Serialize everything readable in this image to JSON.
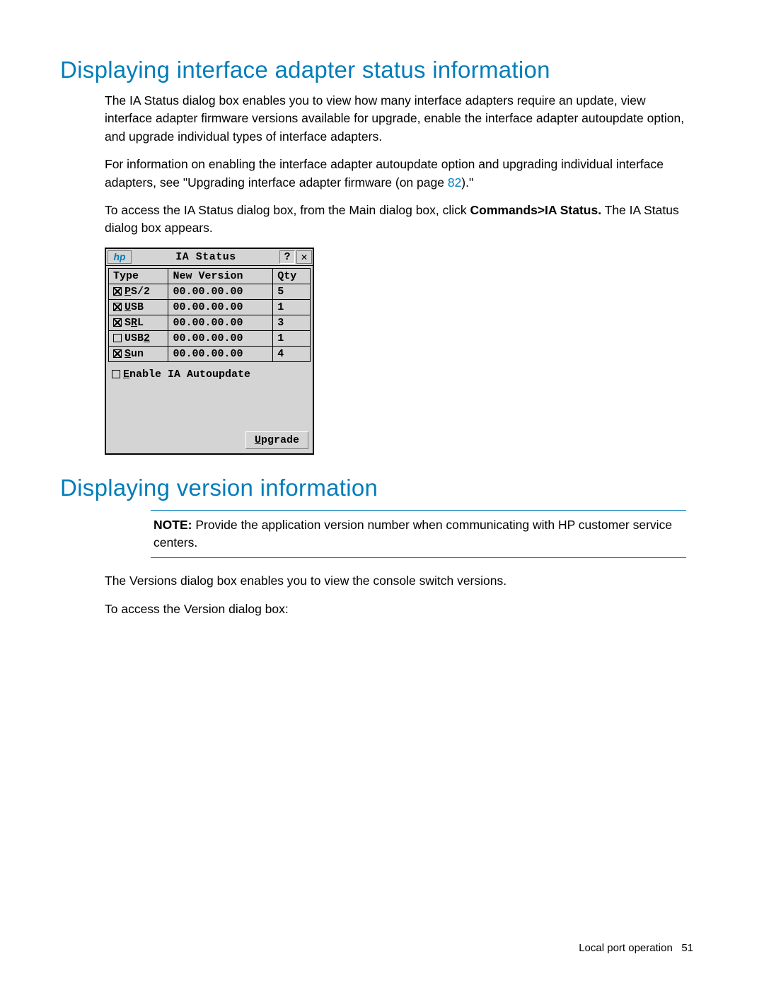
{
  "heading1": "Displaying interface adapter status information",
  "para1": "The IA Status dialog box enables you to view how many interface adapters require an update, view interface adapter firmware versions available for upgrade, enable the interface adapter autoupdate option, and upgrade individual types of interface adapters.",
  "para2_pre": "For information on enabling the interface adapter autoupdate option and upgrading individual interface adapters, see \"Upgrading interface adapter firmware (on page ",
  "para2_pageref": "82",
  "para2_post": ").\"",
  "para3_pre": "To access the IA Status dialog box, from the Main dialog box, click ",
  "para3_bold": "Commands>IA Status.",
  "para3_post": " The IA Status dialog box appears.",
  "dialog": {
    "logo": "hp",
    "title": "IA Status",
    "help": "?",
    "close": "✕",
    "columns": {
      "type": "Type",
      "ver": "New Version",
      "qty": "Qty"
    },
    "rows": [
      {
        "checked": true,
        "hot": "P",
        "rest": "S/2",
        "ver": "00.00.00.00",
        "qty": "5"
      },
      {
        "checked": true,
        "hot": "U",
        "rest": "SB",
        "ver": "00.00.00.00",
        "qty": "1"
      },
      {
        "checked": true,
        "hot": "",
        "pre": "S",
        "hot2": "R",
        "rest": "L",
        "ver": "00.00.00.00",
        "qty": "3"
      },
      {
        "checked": false,
        "hot": "",
        "pre": "USB",
        "hot2": "2",
        "rest": "",
        "ver": "00.00.00.00",
        "qty": "1"
      },
      {
        "checked": true,
        "hot": "S",
        "rest": "un",
        "ver": "00.00.00.00",
        "qty": "4"
      }
    ],
    "autoupdate": {
      "checked": false,
      "hot": "E",
      "rest": "nable IA Autoupdate"
    },
    "upgrade": {
      "hot": "U",
      "rest": "pgrade"
    }
  },
  "heading2": "Displaying version information",
  "note_label": "NOTE:",
  "note_text": " Provide the application version number when communicating with HP customer service centers.",
  "para4": "The Versions dialog box enables you to view the console switch versions.",
  "para5": "To access the Version dialog box:",
  "footer_text": "Local port operation",
  "footer_page": "51",
  "colors": {
    "accent": "#007dba",
    "dialog_bg": "#d4d4d4"
  }
}
